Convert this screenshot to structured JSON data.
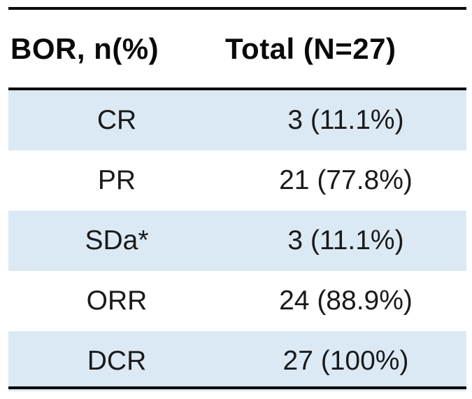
{
  "table": {
    "header": {
      "col1": "BOR, n(%)",
      "col2": "Total (N=27)"
    },
    "rows": [
      {
        "label": "CR",
        "value": "3 (11.1%)"
      },
      {
        "label": "PR",
        "value": "21 (77.8%)"
      },
      {
        "label": "SDa*",
        "value": "3 (11.1%)"
      },
      {
        "label": "ORR",
        "value": "24 (88.9%)"
      },
      {
        "label": "DCR",
        "value": "27 (100%)"
      }
    ],
    "colors": {
      "row_highlight": "#dbe9f5",
      "rule": "#0a0a0a",
      "text": "#1a1a1a"
    }
  }
}
